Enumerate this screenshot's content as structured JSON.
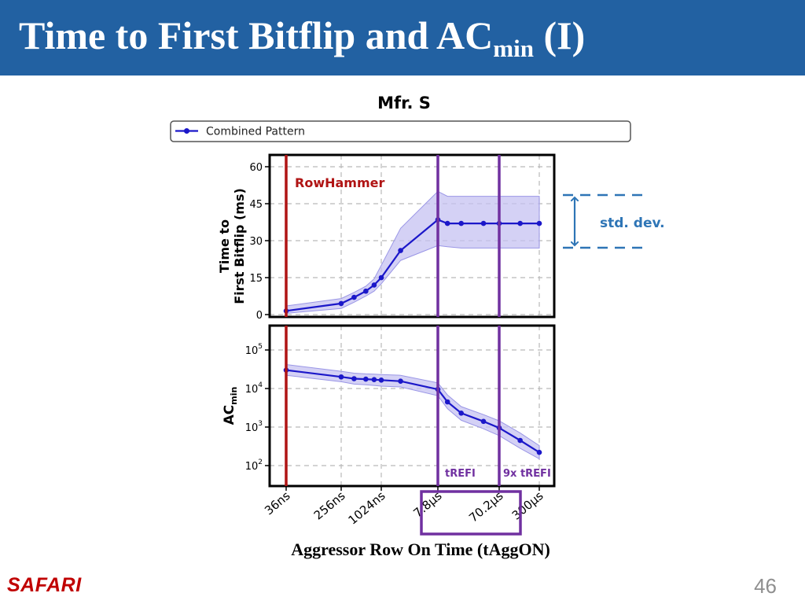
{
  "slide": {
    "title_main": "Time to First Bitflip and AC",
    "title_sub": "min",
    "title_suffix": " (I)",
    "x_axis_title": "Aggressor Row On Time (tAggON)",
    "logo": "SAFARI",
    "page_number": "46"
  },
  "colors": {
    "title_bar": "#2261a2",
    "series": "#1b17c9",
    "band": "#c5c2f2",
    "rowhammer_line": "#b01414",
    "trefi_line": "#7030a0",
    "annotation": "#2e75b6",
    "logo": "#c00000"
  },
  "chart_data": {
    "type": "line",
    "title": "Mfr. S",
    "legend": "Combined Pattern",
    "legend_position": "top-full-width",
    "categories": [
      "36ns",
      "256ns",
      "1024ns",
      "7.8µs",
      "70.2µs",
      "300µs"
    ],
    "x_scale": "log-time",
    "x_values_ns": [
      36,
      256,
      400,
      600,
      800,
      1024,
      2048,
      7800,
      11000,
      18000,
      40000,
      70200,
      150000,
      300000
    ],
    "panels": [
      {
        "ylabel": "Time to First Bitflip (ms)",
        "yscale": "linear",
        "ylim": [
          0,
          60
        ],
        "yticks": [
          "0",
          "15",
          "30",
          "45",
          "60"
        ],
        "y_values": [
          1.5,
          4.5,
          7,
          9.5,
          12,
          15,
          26,
          38.5,
          37,
          37,
          37,
          37,
          37,
          37
        ],
        "band_low": [
          0.5,
          2.5,
          5,
          7.5,
          9.5,
          12.5,
          22,
          28,
          27.5,
          27,
          27,
          27,
          27,
          27
        ],
        "band_high": [
          3.5,
          6.5,
          9,
          11.5,
          14.5,
          20,
          35,
          50,
          48,
          48,
          48,
          48,
          48,
          48
        ]
      },
      {
        "ylabel": "AC",
        "ylabel_sub": "min",
        "yscale": "log",
        "ylim_exp": [
          1.5,
          5.5
        ],
        "yticks": [
          {
            "base": "10",
            "exp": "2"
          },
          {
            "base": "10",
            "exp": "3"
          },
          {
            "base": "10",
            "exp": "4"
          },
          {
            "base": "10",
            "exp": "5"
          }
        ],
        "y_values": [
          30000,
          20000,
          18000,
          17500,
          17000,
          16500,
          15500,
          9500,
          4500,
          2300,
          1400,
          950,
          450,
          220
        ],
        "band_low": [
          22000,
          15000,
          13000,
          12500,
          12000,
          11500,
          11000,
          6500,
          3000,
          1500,
          900,
          600,
          280,
          150
        ],
        "band_high": [
          42000,
          28000,
          25000,
          24000,
          23500,
          23000,
          22000,
          14000,
          6800,
          3400,
          2100,
          1450,
          700,
          330
        ]
      }
    ],
    "vlines": [
      {
        "label": "RowHammer",
        "at_ns": 36
      },
      {
        "label": "tREFI",
        "at_ns": 7800
      },
      {
        "label": "9x tREFI",
        "at_ns": 70200
      }
    ],
    "highlight_ticks": [
      "7.8µs",
      "70.2µs"
    ],
    "annotation": "std. dev."
  }
}
